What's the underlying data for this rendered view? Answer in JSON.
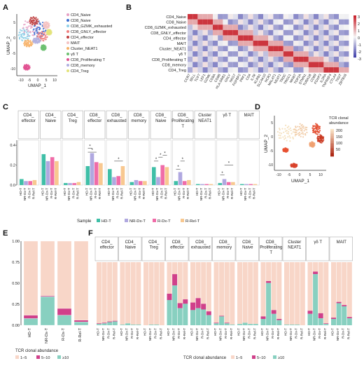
{
  "panel_labels": [
    "A",
    "B",
    "C",
    "D",
    "E",
    "F"
  ],
  "clusters": [
    "CD4_Naive",
    "CD8_Naive",
    "CD8_GZMK_exhausted",
    "CD8_GNLY_effector",
    "CD4_effector",
    "MAIT",
    "Cluster_NEAT1",
    "γδ T",
    "CD8_Proliferating T",
    "CD8_memory",
    "CD4_Treg"
  ],
  "cluster_colors": [
    "#e6a0c4",
    "#3b6fd1",
    "#8fd0e8",
    "#f08080",
    "#c04040",
    "#f4c2c2",
    "#f7b267",
    "#6cc070",
    "#e05090",
    "#b0b0e0",
    "#e3e37a"
  ],
  "panelA": {
    "xlabel": "UMAP_1",
    "ylabel": "UMAP_2",
    "xticks": [
      "-10",
      "-5",
      "0",
      "5",
      "10"
    ],
    "yticks": [
      "5",
      "0",
      "-5",
      "-10"
    ]
  },
  "panelB": {
    "rows": [
      "CD4_Naive",
      "CD8_Naive",
      "CD8_GZMK_exhausted",
      "CD8_GNLY_effector",
      "CD4_effector",
      "MAIT",
      "Cluster_NEAT1",
      "γδ T",
      "CD8_Proliferating T",
      "CD8_memory",
      "CD4_Treg"
    ],
    "cols": [
      "CCR7",
      "SELL",
      "TCF7",
      "LEF1",
      "GZMK",
      "CD8A",
      "CD8B",
      "HLA-DRB1",
      "GNLY",
      "NKG7",
      "FGFBP2",
      "PRF1",
      "CD4",
      "IL7R",
      "KLRB1",
      "SLC4A10",
      "NCR3",
      "MALAT1",
      "NEAT1",
      "TRDC",
      "TRGC1",
      "MKI67",
      "TOP2A",
      "STMN1",
      "TUBA1B",
      "CD69",
      "FOXP3",
      "IL2RA",
      "TNFRSF4",
      "CTLA4",
      "TIGIT",
      "ZBTB16"
    ],
    "legend": [
      "3",
      "2",
      "1",
      "0",
      "-1",
      "-2",
      "-3"
    ],
    "colors": {
      "low": "#3a3aa8",
      "mid": "#f5f5f5",
      "high": "#c8202a"
    }
  },
  "panelC": {
    "groups": [
      "CD4_\neffector",
      "CD4_\nNaive",
      "CD4_\nTreg",
      "CD8_\neffector",
      "CD8_\nexhausted",
      "CD8_\nmemory",
      "CD8_\nNaive",
      "CD8_\nProliferating\nT",
      "Cluster\nNEAT1",
      "γδ T",
      "MAIT"
    ],
    "samples": [
      "HD-T",
      "NR-Dx-T",
      "R-Dx-T",
      "R-Rel-T"
    ],
    "sample_colors": [
      "#3fbfa7",
      "#b0a8e0",
      "#f06ca8",
      "#f8c890"
    ],
    "legend_title": "Sample",
    "yticks": [
      "0.0",
      "0.2",
      "0.4"
    ],
    "star": "*"
  },
  "panelD": {
    "xlabel": "UMAP_1",
    "ylabel": "UMAP_2",
    "legend_title": "TCR clonal\nabundance",
    "legend_ticks": [
      "200",
      "150",
      "100",
      "50"
    ],
    "xticks": [
      "-10",
      "-5",
      "0",
      "5",
      "10"
    ],
    "yticks": [
      "5",
      "0",
      "-5",
      "-10"
    ]
  },
  "panelE": {
    "yticks": [
      "1.00",
      "0.75",
      "0.50",
      "0.25",
      "0.00"
    ],
    "samples": [
      "HD-T",
      "NR-Dx-T",
      "R-Dx-T",
      "R-Rel-T"
    ],
    "legend_title": "TCR clonal abundance",
    "categories": [
      "1–5",
      "5–10",
      "≥10"
    ],
    "cat_colors": [
      "#f8d6c8",
      "#d0408a",
      "#88d0c0"
    ]
  },
  "panelF": {
    "groups": [
      "CD4_\neffector",
      "CD4_\nNaive",
      "CD4_\nTreg",
      "CD8_\neffector",
      "CD8_\nexhausted",
      "CD8_\nmemory",
      "CD8_\nNaive",
      "CD8_\nProliferating\nT",
      "Cluster\nNEAT1",
      "γδ T",
      "MAIT"
    ],
    "legend_title": "TCR clonal abundance",
    "categories": [
      "1–5",
      "5–10",
      "≥10"
    ]
  },
  "chart_data": [
    {
      "panel": "C",
      "type": "bar",
      "title": "",
      "ylim": [
        0,
        0.45
      ],
      "categories": [
        "CD4_effector",
        "CD4_Naive",
        "CD4_Treg",
        "CD8_effector",
        "CD8_exhausted",
        "CD8_memory",
        "CD8_Naive",
        "CD8_Proliferating T",
        "Cluster NEAT1",
        "γδ T",
        "MAIT"
      ],
      "series": [
        {
          "name": "HD-T",
          "values": [
            0.06,
            0.31,
            0.02,
            0.19,
            0.16,
            0.03,
            0.18,
            0.04,
            0.01,
            0.02,
            0.01
          ]
        },
        {
          "name": "NR-Dx-T",
          "values": [
            0.04,
            0.24,
            0.02,
            0.32,
            0.08,
            0.05,
            0.08,
            0.13,
            0.01,
            0.06,
            0.01
          ]
        },
        {
          "name": "R-Dx-T",
          "values": [
            0.04,
            0.28,
            0.02,
            0.23,
            0.09,
            0.04,
            0.2,
            0.04,
            0.01,
            0.03,
            0.01
          ]
        },
        {
          "name": "R-Rel-T",
          "values": [
            0.05,
            0.24,
            0.03,
            0.22,
            0.19,
            0.04,
            0.18,
            0.05,
            0.01,
            0.03,
            0.01
          ]
        }
      ]
    },
    {
      "panel": "E",
      "type": "bar",
      "stacked": true,
      "ylim": [
        0,
        1
      ],
      "categories": [
        "HD-T",
        "NR-Dx-T",
        "R-Dx-T",
        "R-Rel-T"
      ],
      "series": [
        {
          "name": "≥10",
          "values": [
            0.08,
            0.34,
            0.12,
            0.04
          ]
        },
        {
          "name": "5–10",
          "values": [
            0.04,
            0.01,
            0.08,
            0.02
          ]
        },
        {
          "name": "1–5",
          "values": [
            0.88,
            0.65,
            0.8,
            0.94
          ]
        }
      ]
    },
    {
      "panel": "F",
      "type": "bar",
      "stacked": true,
      "ylim": [
        0,
        1
      ],
      "categories": [
        "CD4_effector",
        "CD4_Naive",
        "CD4_Treg",
        "CD8_effector",
        "CD8_exhausted",
        "CD8_memory",
        "CD8_Naive",
        "CD8_Proliferating T",
        "Cluster NEAT1",
        "γδ T",
        "MAIT"
      ],
      "samples": [
        "HD-T",
        "NR-Dx-T",
        "R-Dx-T",
        "R-Rel-T"
      ],
      "ge10": [
        [
          0.02,
          0.03,
          0.05,
          0.06
        ],
        [
          0.01,
          0.03,
          0.01,
          0.01
        ],
        [
          0.0,
          0.01,
          0.01,
          0.0
        ],
        [
          0.4,
          0.63,
          0.27,
          0.34
        ],
        [
          0.24,
          0.27,
          0.25,
          0.16
        ],
        [
          0.03,
          0.14,
          0.03,
          0.01
        ],
        [
          0.02,
          0.04,
          0.02,
          0.02
        ],
        [
          0.1,
          0.67,
          0.18,
          0.08
        ],
        [
          0.01,
          0.01,
          0.01,
          0.0
        ],
        [
          0.18,
          0.81,
          0.11,
          0.02
        ],
        [
          0.1,
          0.35,
          0.3,
          0.11
        ]
      ],
      "b5to10": [
        [
          0.01,
          0.01,
          0.01,
          0.01
        ],
        [
          0.0,
          0.0,
          0.0,
          0.0
        ],
        [
          0.0,
          0.0,
          0.0,
          0.0
        ],
        [
          0.1,
          0.18,
          0.08,
          0.07
        ],
        [
          0.12,
          0.16,
          0.09,
          0.06
        ],
        [
          0.01,
          0.01,
          0.01,
          0.0
        ],
        [
          0.0,
          0.0,
          0.0,
          0.0
        ],
        [
          0.04,
          0.03,
          0.06,
          0.02
        ],
        [
          0.0,
          0.0,
          0.0,
          0.0
        ],
        [
          0.05,
          0.04,
          0.08,
          0.01
        ],
        [
          0.02,
          0.02,
          0.02,
          0.02
        ]
      ]
    }
  ]
}
